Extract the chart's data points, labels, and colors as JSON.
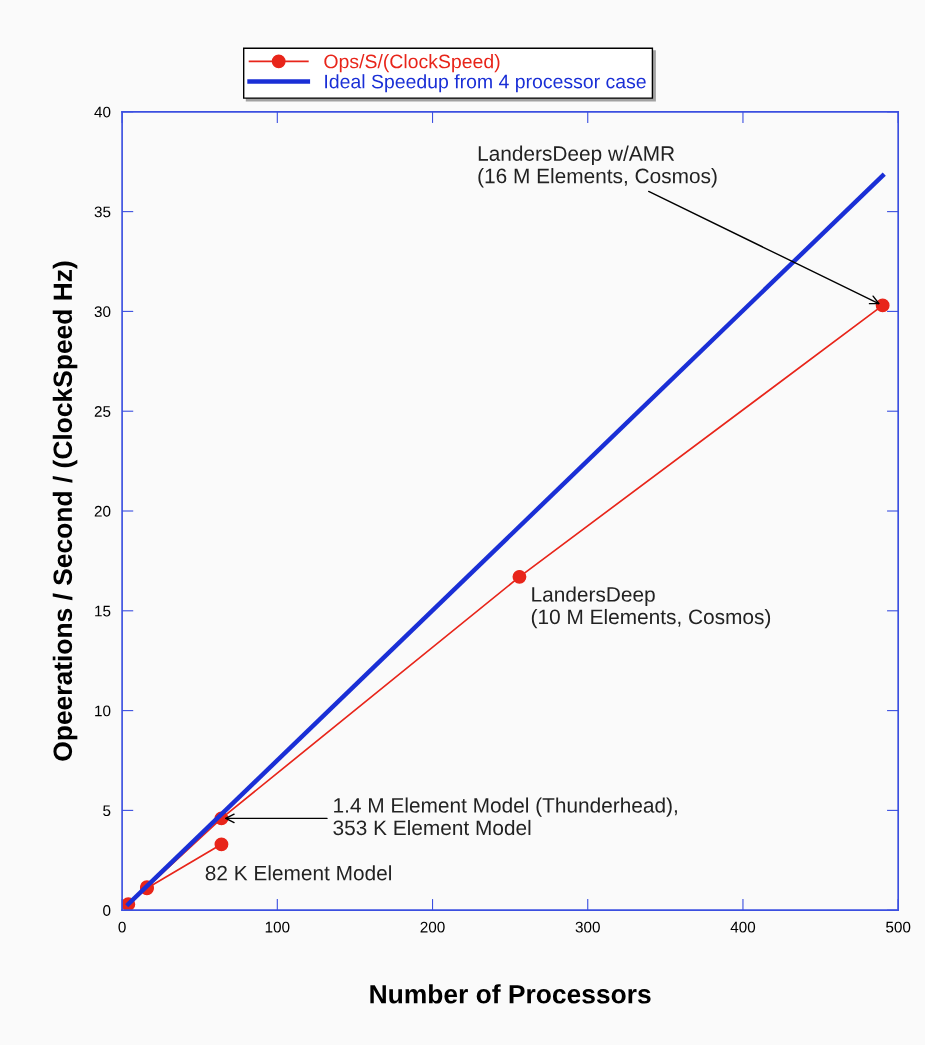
{
  "chart_data": {
    "type": "line",
    "xlabel": "Number of Processors",
    "ylabel": "Opeerations / Second / (ClockSpeed Hz)",
    "series": [
      {
        "name": "Ops/S/(ClockSpeed)",
        "color": "#e8251a",
        "marker": "circle",
        "x": [
          4,
          16,
          64,
          null,
          16,
          64,
          256,
          490
        ],
        "values": [
          0.3,
          1.1,
          3.3,
          null,
          1.15,
          4.6,
          16.7,
          30.3
        ]
      },
      {
        "name": "Ideal Speedup from 4 processor case",
        "color": "#1a2fd6",
        "marker": "none",
        "x": [
          4,
          490
        ],
        "values": [
          0.3,
          36.8
        ]
      }
    ],
    "xlim": [
      0,
      500
    ],
    "xticks": [
      0,
      100,
      200,
      300,
      400,
      500
    ],
    "ylim": [
      0,
      40
    ],
    "yticks": [
      0,
      5,
      10,
      15,
      20,
      25,
      30,
      35,
      40
    ],
    "grid": false,
    "legend": "top",
    "annotations": [
      {
        "text": "LandersDeep w/AMR\n(16 M Elements, Cosmos)",
        "x": 490,
        "y": 30.3
      },
      {
        "text": "LandersDeep\n(10 M Elements, Cosmos)",
        "x": 256,
        "y": 16.7
      },
      {
        "text": "1.4 M Element Model (Thunderhead),\n353 K Element Model",
        "x": 64,
        "y": 4.6
      },
      {
        "text": "82 K Element Model",
        "x": 64,
        "y": 3.3
      }
    ]
  }
}
